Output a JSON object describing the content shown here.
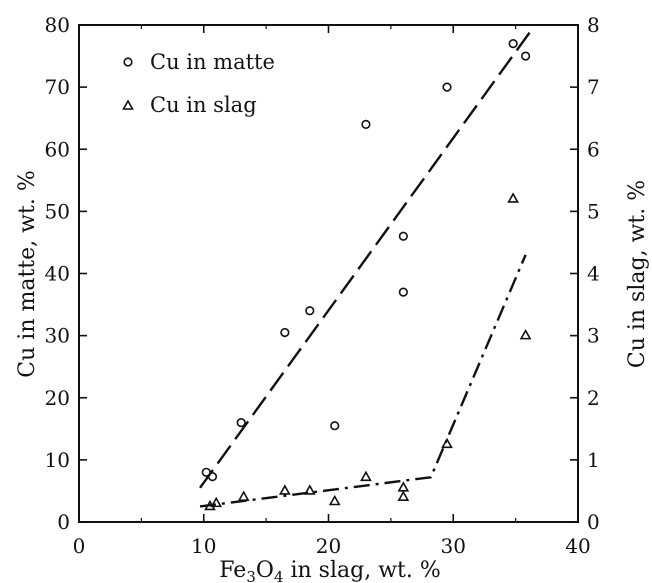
{
  "chart_data": {
    "type": "scatter",
    "xlabel_main": "Fe",
    "xlabel_sub": "3",
    "xlabel_mid": "O",
    "xlabel_sub2": "4",
    "xlabel_rest": " in slag, wt. %",
    "ylabel_left": "Cu in matte, wt. %",
    "ylabel_right": "Cu in slag, wt. %",
    "xlim": [
      0,
      40
    ],
    "ylim_left": [
      0,
      80
    ],
    "ylim_right": [
      0,
      8
    ],
    "x_ticks": [
      "0",
      "10",
      "20",
      "30",
      "40"
    ],
    "y_left_ticks": [
      "0",
      "10",
      "20",
      "30",
      "40",
      "50",
      "60",
      "70",
      "80"
    ],
    "y_right_ticks": [
      "0",
      "1",
      "2",
      "3",
      "4",
      "5",
      "6",
      "7",
      "8"
    ],
    "grid": false,
    "legend_position": "top-left",
    "series": [
      {
        "name": "Cu in matte",
        "axis": "left",
        "marker": "circle",
        "points": [
          [
            10.2,
            8
          ],
          [
            10.7,
            7.3
          ],
          [
            13.0,
            16
          ],
          [
            16.5,
            30.5
          ],
          [
            18.5,
            34
          ],
          [
            20.5,
            15.5
          ],
          [
            23.0,
            64
          ],
          [
            26.0,
            46
          ],
          [
            26.0,
            37
          ],
          [
            29.5,
            70
          ],
          [
            34.8,
            77
          ],
          [
            35.8,
            75
          ]
        ]
      },
      {
        "name": "Cu in slag",
        "axis": "right",
        "marker": "triangle",
        "points": [
          [
            10.5,
            0.25
          ],
          [
            11.0,
            0.3
          ],
          [
            13.2,
            0.4
          ],
          [
            16.5,
            0.5
          ],
          [
            18.5,
            0.5
          ],
          [
            20.5,
            0.33
          ],
          [
            23.0,
            0.72
          ],
          [
            26.0,
            0.55
          ],
          [
            26.0,
            0.4
          ],
          [
            29.5,
            1.25
          ],
          [
            34.8,
            5.2
          ],
          [
            35.8,
            3.0
          ]
        ]
      }
    ],
    "fit_lines": [
      {
        "series": "Cu in matte",
        "axis": "left",
        "style": "dashed",
        "points": [
          [
            9.7,
            5.5
          ],
          [
            36.2,
            79
          ]
        ]
      },
      {
        "series": "Cu in slag",
        "axis": "right",
        "style": "dash-dot",
        "points": [
          [
            9.7,
            0.25
          ],
          [
            28.2,
            0.72
          ],
          [
            35.8,
            4.3
          ]
        ]
      }
    ]
  }
}
